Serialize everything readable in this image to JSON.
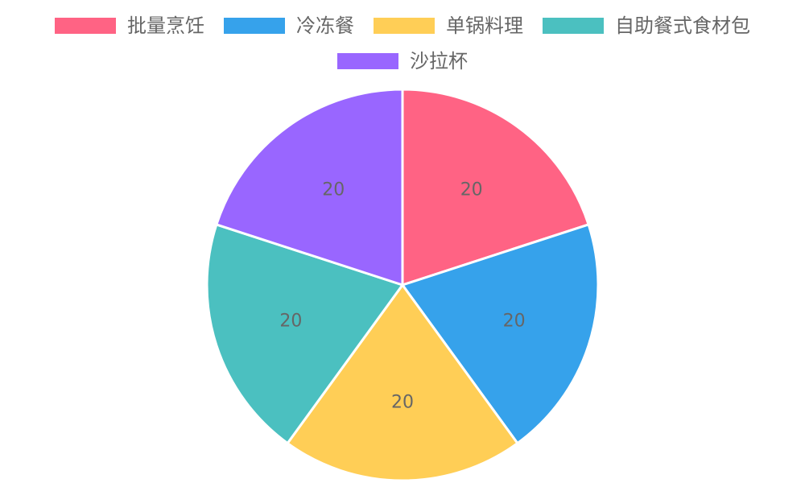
{
  "chart_data": {
    "type": "pie",
    "categories": [
      "批量烹饪",
      "冷冻餐",
      "单锅料理",
      "自助餐式食材包",
      "沙拉杯"
    ],
    "values": [
      20,
      20,
      20,
      20,
      20
    ],
    "colors": [
      "#ff6384",
      "#36a2eb",
      "#ffce56",
      "#4bc0c0",
      "#9966ff"
    ],
    "data_labels": [
      "20",
      "20",
      "20",
      "20",
      "20"
    ],
    "legend_position": "top",
    "slice_border_color": "#ffffff",
    "title": "",
    "xlabel": "",
    "ylabel": ""
  }
}
